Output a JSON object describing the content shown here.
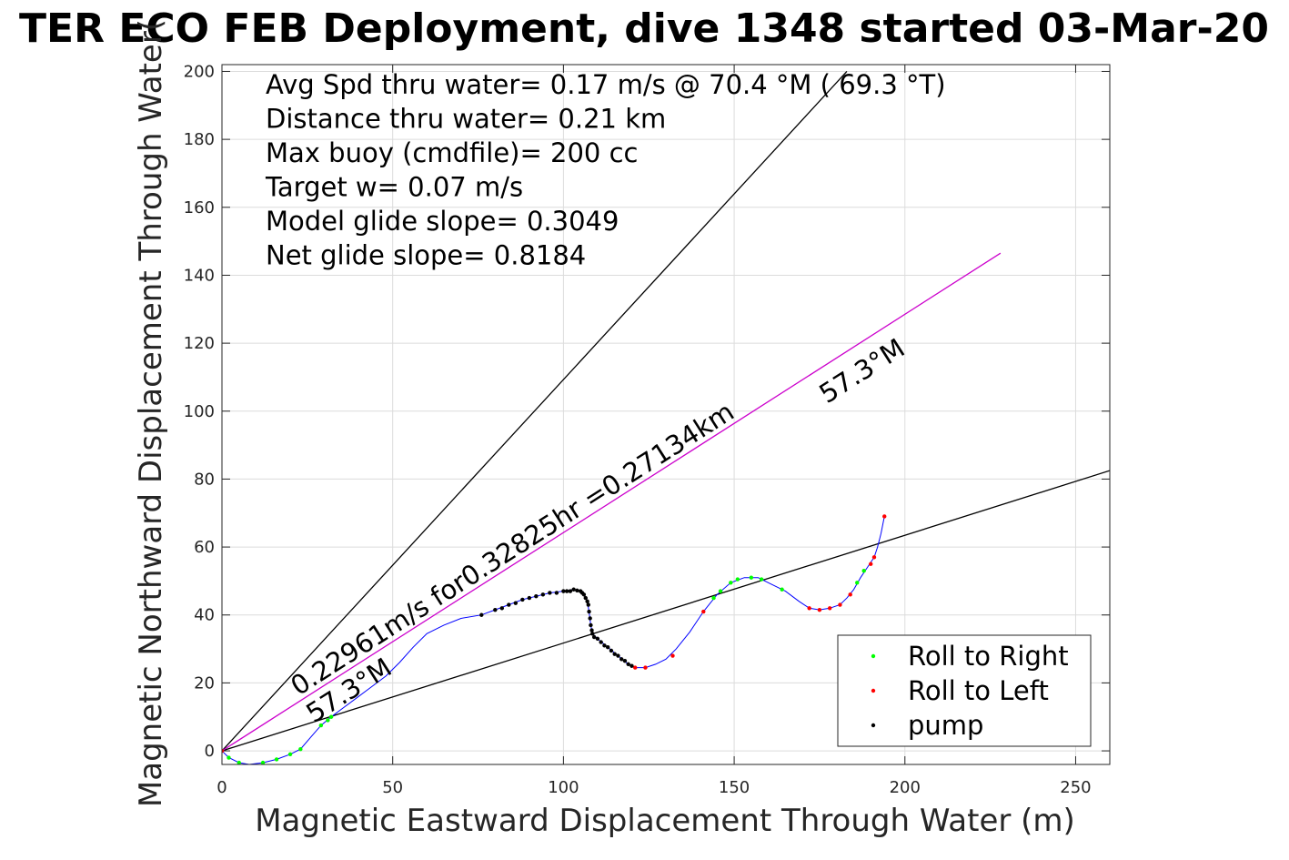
{
  "chart_data": {
    "type": "line",
    "title": "TER ECO FEB Deployment, dive 1348 started 03-Mar-20",
    "xlabel": "Magnetic Eastward Displacement Through Water (m)",
    "ylabel": "Magnetic Northward Displacement Through Water(",
    "xlim": [
      0,
      260
    ],
    "ylim": [
      -4,
      202
    ],
    "xticks": [
      0,
      50,
      100,
      150,
      200,
      250
    ],
    "yticks": [
      0,
      20,
      40,
      60,
      80,
      100,
      120,
      140,
      160,
      180,
      200
    ],
    "grid": true,
    "legend_position": "bottom-right",
    "annotations": [
      "Avg Spd thru water=  0.17 m/s @  70.4 °M ( 69.3 °T)",
      "Distance thru water=  0.21 km",
      "Max buoy (cmdfile)= 200 cc",
      "Target w= 0.07 m/s",
      "Model glide slope= 0.3049",
      "Net glide slope= 0.8184"
    ],
    "line_labels": {
      "current": "0.22961m/s for0.32825hr =0.27134km",
      "heading_upper": "57.3°M",
      "heading_lower": "57.3°M"
    },
    "reference_lines": [
      {
        "x": [
          0,
          183
        ],
        "y": [
          0,
          200
        ],
        "color": "#000000"
      },
      {
        "x": [
          0,
          260
        ],
        "y": [
          0,
          82.5
        ],
        "color": "#000000"
      },
      {
        "x": [
          0,
          228
        ],
        "y": [
          0,
          146.5
        ],
        "color": "#cc00cc"
      }
    ],
    "track": {
      "color": "#0000ff",
      "points": [
        [
          0,
          0
        ],
        [
          2,
          -2
        ],
        [
          5,
          -3.5
        ],
        [
          8,
          -4
        ],
        [
          12,
          -3.5
        ],
        [
          16,
          -2.5
        ],
        [
          20,
          -1
        ],
        [
          23,
          0.5
        ],
        [
          26,
          4
        ],
        [
          29,
          7.5
        ],
        [
          32,
          10
        ],
        [
          36,
          13
        ],
        [
          40,
          16
        ],
        [
          44,
          19
        ],
        [
          48,
          22
        ],
        [
          52,
          26
        ],
        [
          56,
          30.5
        ],
        [
          60,
          34.5
        ],
        [
          65,
          37
        ],
        [
          70,
          39
        ],
        [
          76,
          40
        ],
        [
          80,
          41.5
        ],
        [
          84,
          43
        ],
        [
          88,
          44.5
        ],
        [
          92,
          45.5
        ],
        [
          96,
          46.5
        ],
        [
          100,
          47
        ],
        [
          103,
          47.5
        ],
        [
          105,
          47
        ],
        [
          106,
          46
        ],
        [
          107,
          44
        ],
        [
          107.5,
          41
        ],
        [
          108,
          37
        ],
        [
          108.5,
          34.5
        ],
        [
          110,
          33
        ],
        [
          113,
          30.5
        ],
        [
          116,
          28
        ],
        [
          119,
          25.5
        ],
        [
          121,
          24.5
        ],
        [
          124,
          24.5
        ],
        [
          127,
          25.5
        ],
        [
          130,
          27
        ],
        [
          133,
          30
        ],
        [
          137,
          35
        ],
        [
          141,
          41
        ],
        [
          145,
          46
        ],
        [
          149,
          49.5
        ],
        [
          153,
          51
        ],
        [
          157,
          51
        ],
        [
          160,
          49.5
        ],
        [
          165,
          47
        ],
        [
          169,
          44
        ],
        [
          172,
          42
        ],
        [
          175,
          41.5
        ],
        [
          178,
          42
        ],
        [
          181,
          43
        ],
        [
          183,
          45
        ],
        [
          185,
          47.5
        ],
        [
          187,
          51
        ],
        [
          189,
          54
        ],
        [
          191,
          57
        ],
        [
          192,
          60
        ],
        [
          193,
          64
        ],
        [
          194,
          69
        ]
      ]
    },
    "series": [
      {
        "name": "Roll to Right",
        "color": "#00ff00",
        "points": [
          [
            2,
            -2
          ],
          [
            5,
            -3.5
          ],
          [
            12,
            -3.5
          ],
          [
            16,
            -2.5
          ],
          [
            20,
            -1
          ],
          [
            23,
            0.5
          ],
          [
            29,
            7.5
          ],
          [
            31,
            9
          ],
          [
            32,
            10
          ],
          [
            144,
            45
          ],
          [
            146,
            47
          ],
          [
            149,
            49.5
          ],
          [
            151,
            50.5
          ],
          [
            155,
            51
          ],
          [
            158,
            50.5
          ],
          [
            164,
            47.5
          ],
          [
            186,
            49.5
          ],
          [
            188,
            53
          ]
        ]
      },
      {
        "name": "Roll to Left",
        "color": "#ff0000",
        "points": [
          [
            0,
            0
          ],
          [
            121,
            24.5
          ],
          [
            124,
            24.5
          ],
          [
            132,
            28
          ],
          [
            141,
            41
          ],
          [
            172,
            42
          ],
          [
            175,
            41.5
          ],
          [
            178,
            42
          ],
          [
            181,
            43
          ],
          [
            184,
            46
          ],
          [
            190,
            55
          ],
          [
            191,
            57
          ],
          [
            194,
            69
          ]
        ]
      },
      {
        "name": "pump",
        "color": "#000000",
        "points": [
          [
            76,
            40
          ],
          [
            80,
            41.5
          ],
          [
            82,
            42
          ],
          [
            84,
            43
          ],
          [
            86,
            43.5
          ],
          [
            88,
            44.5
          ],
          [
            90,
            45
          ],
          [
            92,
            45.5
          ],
          [
            94,
            46
          ],
          [
            96,
            46.5
          ],
          [
            98,
            46.5
          ],
          [
            100,
            47
          ],
          [
            101,
            47
          ],
          [
            102,
            47
          ],
          [
            103,
            47.5
          ],
          [
            104,
            47.2
          ],
          [
            105,
            47
          ],
          [
            105.5,
            46.5
          ],
          [
            106,
            46
          ],
          [
            106.5,
            45
          ],
          [
            107,
            44
          ],
          [
            107.3,
            43
          ],
          [
            107.5,
            41
          ],
          [
            107.8,
            39
          ],
          [
            108,
            37
          ],
          [
            108.3,
            35.5
          ],
          [
            108.5,
            34.5
          ],
          [
            109,
            33.5
          ],
          [
            110,
            33
          ],
          [
            111,
            32
          ],
          [
            112,
            31
          ],
          [
            113,
            30.5
          ],
          [
            114,
            29.5
          ],
          [
            115,
            28.5
          ],
          [
            116,
            28
          ],
          [
            117,
            27
          ],
          [
            118,
            26.5
          ],
          [
            119,
            25.5
          ],
          [
            120,
            25
          ]
        ]
      }
    ]
  }
}
